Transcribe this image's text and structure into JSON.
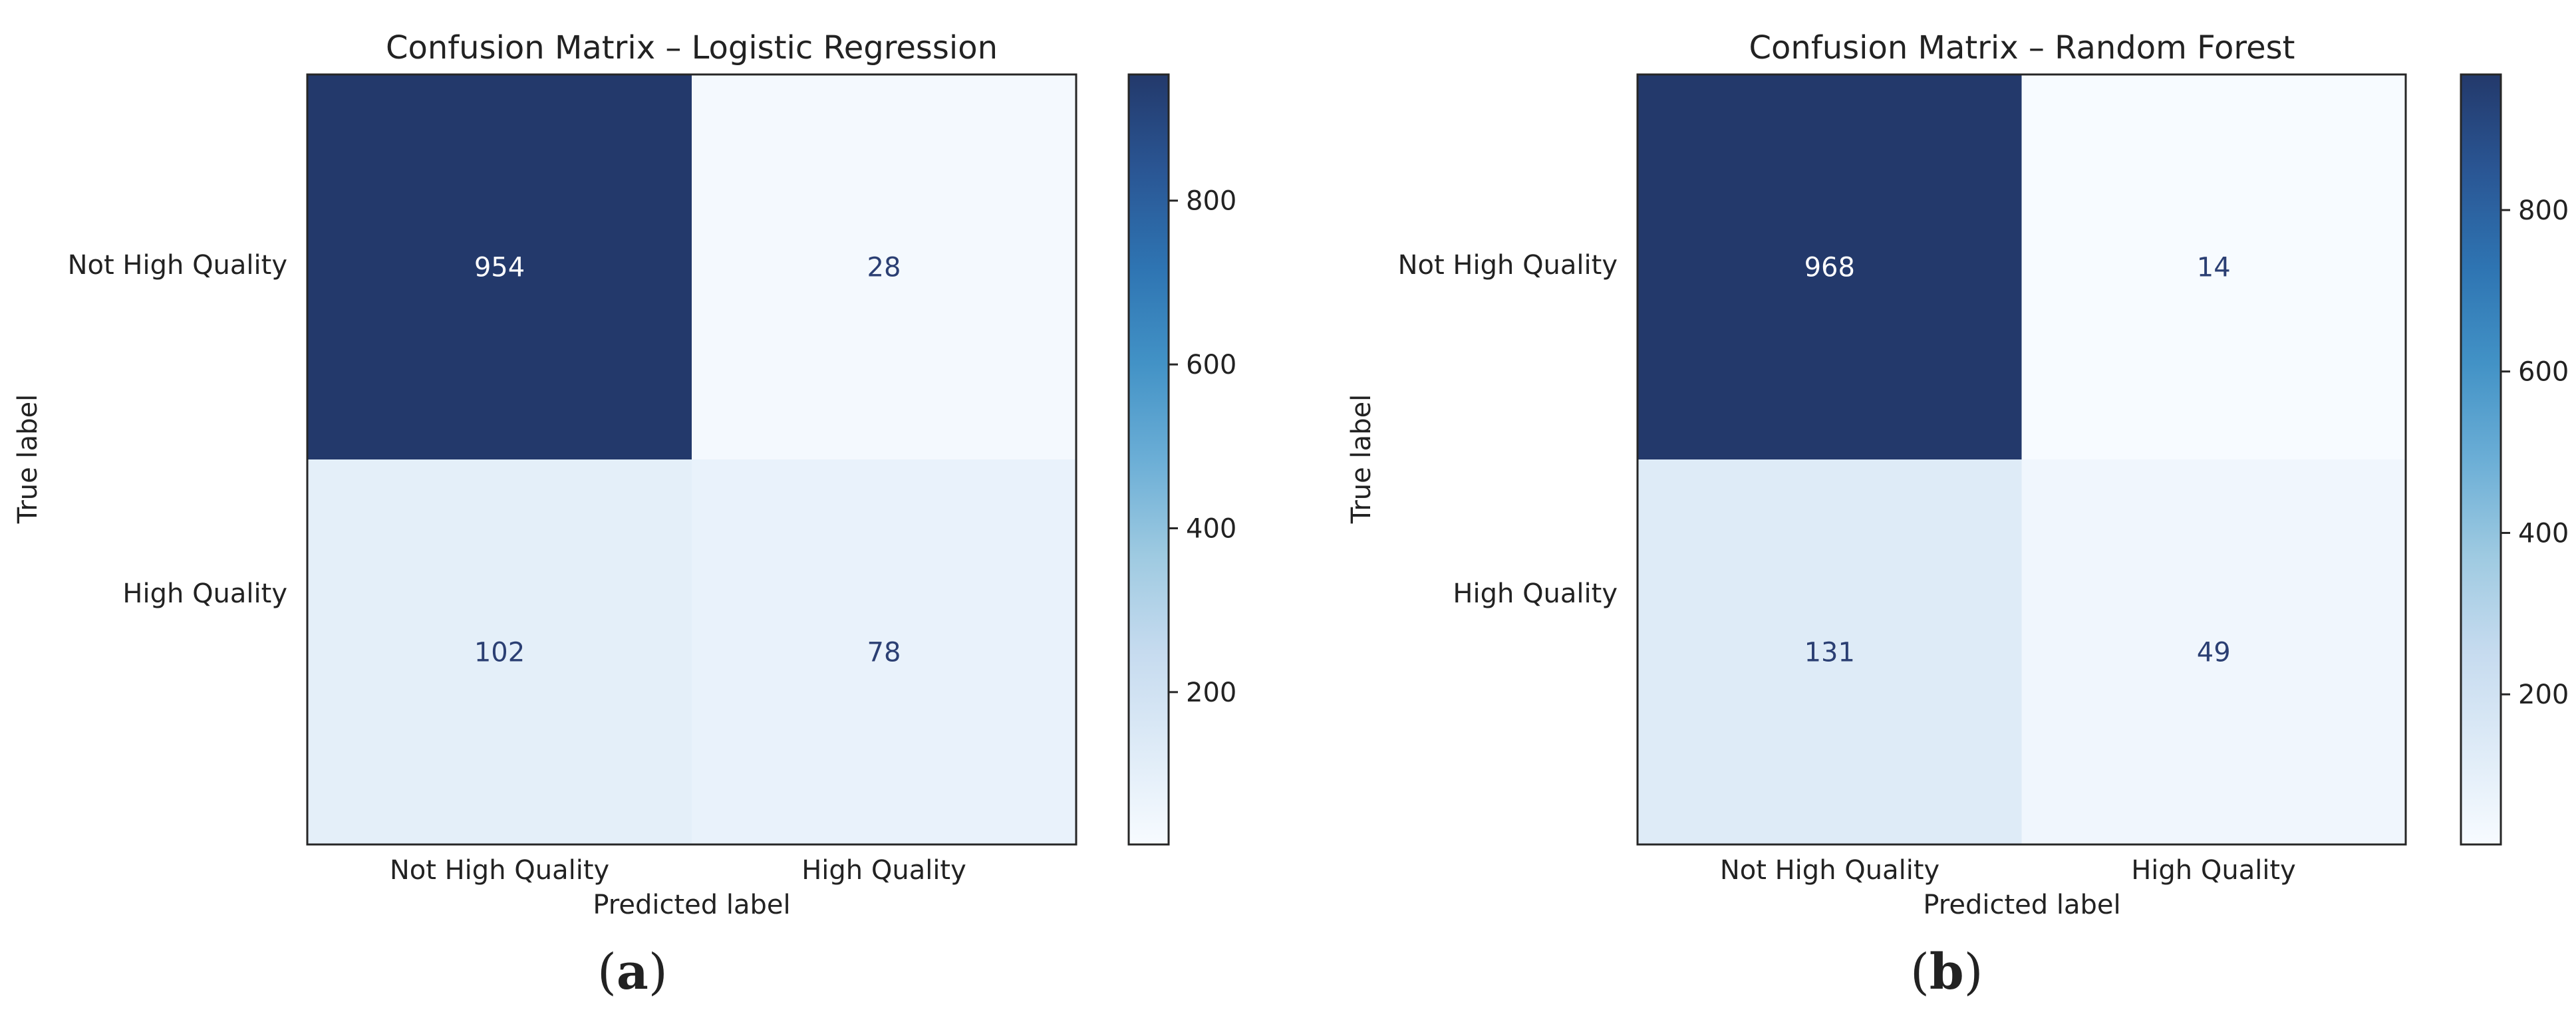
{
  "chart_data": [
    {
      "type": "heatmap",
      "title": "Confusion Matrix – Logistic Regression",
      "xlabel": "Predicted label",
      "ylabel": "True label",
      "x_categories": [
        "Not High Quality",
        "High Quality"
      ],
      "y_categories": [
        "Not High Quality",
        "High Quality"
      ],
      "values": [
        [
          954,
          28
        ],
        [
          102,
          78
        ]
      ],
      "colormap": "Blues",
      "colorbar_ticks": [
        200,
        400,
        600,
        800
      ],
      "colorbar_range": [
        14,
        954
      ],
      "panel_label": "a"
    },
    {
      "type": "heatmap",
      "title": "Confusion Matrix – Random Forest",
      "xlabel": "Predicted label",
      "ylabel": "True label",
      "x_categories": [
        "Not High Quality",
        "High Quality"
      ],
      "y_categories": [
        "Not High Quality",
        "High Quality"
      ],
      "values": [
        [
          968,
          14
        ],
        [
          131,
          49
        ]
      ],
      "colormap": "Blues",
      "colorbar_ticks": [
        200,
        400,
        600,
        800
      ],
      "colorbar_range": [
        14,
        968
      ],
      "panel_label": "b"
    }
  ],
  "colors": {
    "cmap_low": "#f7fbff",
    "cmap_high": "#23396b",
    "text_dark": "#222222",
    "text_on_light": "#2b3f73",
    "text_on_dark": "#ffffff",
    "axis": "#262626"
  }
}
